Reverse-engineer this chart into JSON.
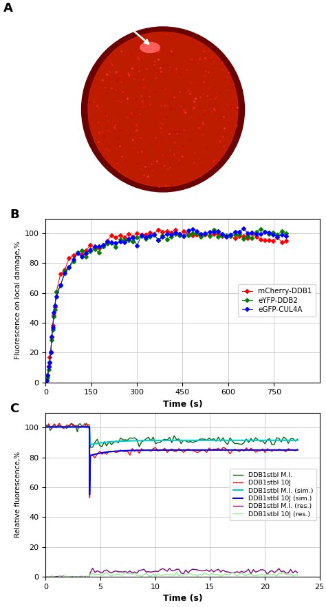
{
  "panel_A_bg": "#1a0000",
  "panel_B": {
    "xlabel": "Time (s)",
    "ylabel": "Fluorescence on local damage,%",
    "xlim": [
      0,
      900
    ],
    "ylim": [
      0,
      110
    ],
    "xticks": [
      0,
      150,
      300,
      450,
      600,
      750
    ],
    "yticks": [
      0,
      20,
      40,
      60,
      80,
      100
    ],
    "series": [
      {
        "label": "mCherry-DDB1",
        "color": "#ff0000"
      },
      {
        "label": "eYFP-DDB2",
        "color": "#008000"
      },
      {
        "label": "eGFP-CUL4A",
        "color": "#0000ff"
      }
    ]
  },
  "panel_C": {
    "xlabel": "Time (s)",
    "ylabel": "Relative fluorescence,%",
    "xlim": [
      0,
      25
    ],
    "ylim": [
      0,
      110
    ],
    "xticks": [
      0,
      5,
      10,
      15,
      20,
      25
    ],
    "yticks": [
      0,
      20,
      40,
      60,
      80,
      100
    ],
    "series": [
      {
        "label": "DDB1stbl M.I.",
        "color": "#006400",
        "lw": 1.0
      },
      {
        "label": "DDB1stbl 10J",
        "color": "#ff0000",
        "lw": 1.0
      },
      {
        "label": "DDB1stbl M.I. (sim.)",
        "color": "#00cccc",
        "lw": 1.5
      },
      {
        "label": "DDB1stbl 10J (sim.)",
        "color": "#0000ff",
        "lw": 1.5
      },
      {
        "label": "DDB1stbl M.I. (res.)",
        "color": "#800080",
        "lw": 1.0
      },
      {
        "label": "DDB1stbl 10J (res.)",
        "color": "#90ee90",
        "lw": 1.0
      }
    ]
  }
}
